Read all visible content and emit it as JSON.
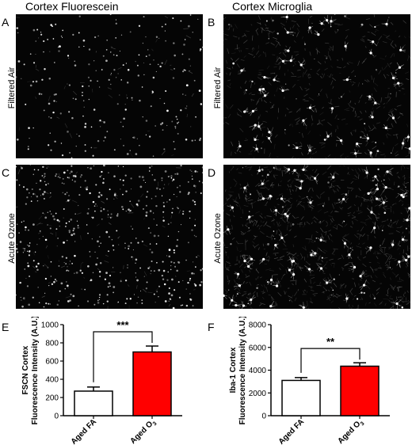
{
  "figure": {
    "columns": [
      {
        "title": "Cortex Fluorescein"
      },
      {
        "title": "Cortex Microglia"
      }
    ],
    "rows": [
      {
        "label": "Filtered Air"
      },
      {
        "label": "Acute Ozone"
      }
    ],
    "panels": {
      "A": {
        "letter": "A"
      },
      "B": {
        "letter": "B"
      },
      "C": {
        "letter": "C"
      },
      "D": {
        "letter": "D"
      },
      "E": {
        "letter": "E"
      },
      "F": {
        "letter": "F"
      }
    }
  },
  "chart_data": [
    {
      "panel": "E",
      "type": "bar",
      "categories": [
        "Aged FA",
        "Aged O3"
      ],
      "values": [
        270,
        700
      ],
      "errors": [
        45,
        65
      ],
      "bar_colors": [
        "#ffffff",
        "#ff0000"
      ],
      "ylabel_line1": "FSCN Cortex",
      "ylabel_line2": "Fluorescence Intensity (A.U.)",
      "ylim": [
        0,
        1000
      ],
      "yticks": [
        0,
        200,
        400,
        600,
        800,
        1000
      ],
      "significance": "***"
    },
    {
      "panel": "F",
      "type": "bar",
      "categories": [
        "Aged FA",
        "Aged O3"
      ],
      "values": [
        3100,
        4350
      ],
      "errors": [
        250,
        300
      ],
      "bar_colors": [
        "#ffffff",
        "#ff0000"
      ],
      "ylabel_line1": "Iba-1 Cortex",
      "ylabel_line2": "Fluorescence Intensity (A.U.)",
      "ylim": [
        0,
        8000
      ],
      "yticks": [
        0,
        2000,
        4000,
        6000,
        8000
      ],
      "significance": "**"
    }
  ]
}
